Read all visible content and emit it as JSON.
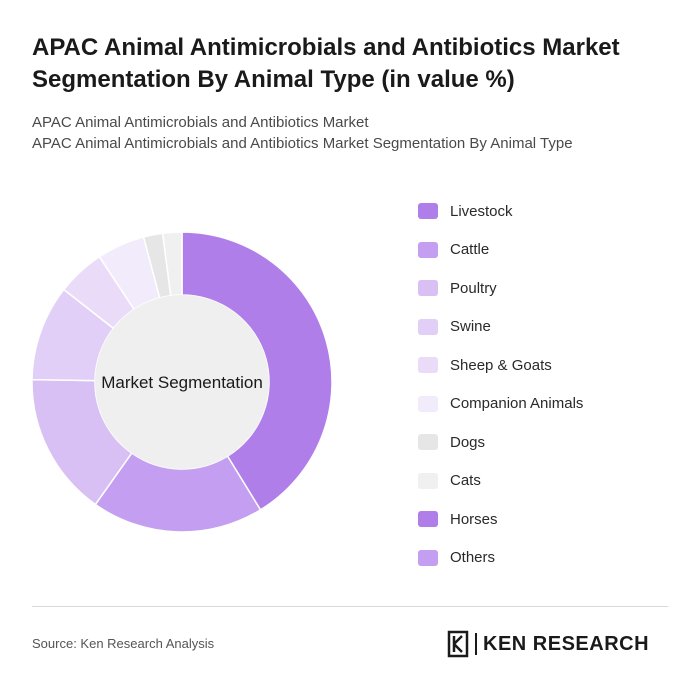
{
  "title": "APAC Animal Antimicrobials and Antibiotics Market Segmentation By Animal Type (in value %)",
  "subtitle_line1": "APAC Animal Antimicrobials and Antibiotics Market",
  "subtitle_line2": "APAC Animal Antimicrobials and Antibiotics Market Segmentation By Animal Type",
  "source": "Source: Ken Research Analysis",
  "logo_text": "KEN RESEARCH",
  "chart_data": {
    "type": "pie",
    "donut": true,
    "center_label": "Market Segmentation",
    "categories": [
      "Livestock",
      "Cattle",
      "Poultry",
      "Swine",
      "Sheep & Goats",
      "Companion Animals",
      "Dogs",
      "Cats",
      "Horses",
      "Others"
    ],
    "values": [
      40,
      18,
      15,
      10,
      5,
      5,
      2,
      2,
      0,
      0
    ],
    "colors": [
      "#b07ee8",
      "#c49ef0",
      "#d8c0f5",
      "#e2cff7",
      "#eadcf9",
      "#f2ebfb",
      "#e6e6e6",
      "#f0f0f0",
      "#b07ee8",
      "#c49ef0"
    ],
    "legend_position": "right"
  }
}
